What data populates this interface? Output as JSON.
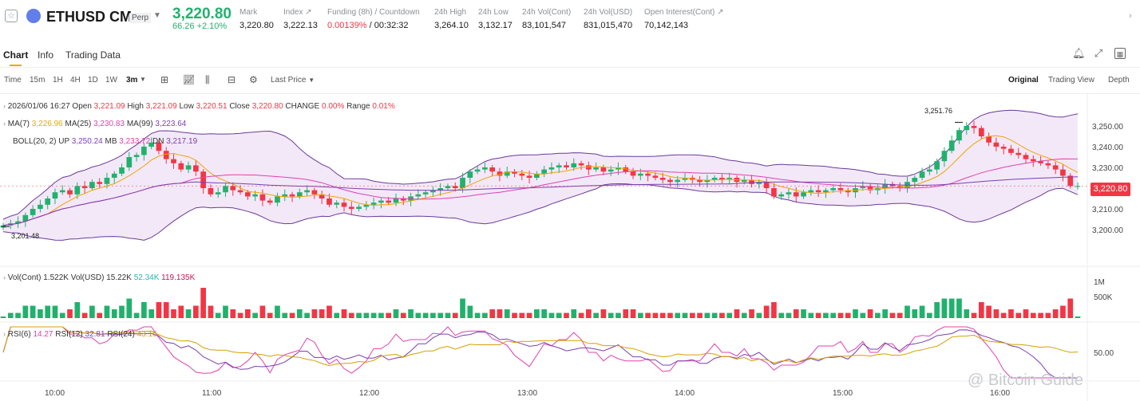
{
  "ticker": {
    "symbol": "ETHUSD CM",
    "perp_badge": "Perp",
    "last_price": "3,220.80",
    "change": "66.26 +2.10%",
    "stats": [
      {
        "label": "Mark",
        "value": "3,220.80",
        "color": "#1a1a1a"
      },
      {
        "label": "Index ↗",
        "value": "3,222.13",
        "color": "#1a1a1a"
      },
      {
        "label": "Funding (8h) / Countdown",
        "value": "0.00139%",
        "value2": " / 00:32:32",
        "color": "#f23645"
      },
      {
        "label": "24h High",
        "value": "3,264.10",
        "color": "#1a1a1a"
      },
      {
        "label": "24h Low",
        "value": "3,132.17",
        "color": "#1a1a1a"
      },
      {
        "label": "24h Vol(Cont)",
        "value": "83,101,547",
        "color": "#1a1a1a"
      },
      {
        "label": "24h Vol(USD)",
        "value": "831,015,470",
        "color": "#1a1a1a"
      },
      {
        "label": "Open Interest(Cont) ↗",
        "value": "70,142,143",
        "color": "#1a1a1a"
      }
    ]
  },
  "tabs": [
    "Chart",
    "Info",
    "Trading Data"
  ],
  "toolbar": {
    "intervals": [
      "Time",
      "15m",
      "1H",
      "4H",
      "1D",
      "1W",
      "3m"
    ],
    "active_interval": "3m",
    "price_type": "Last Price",
    "views": [
      "Original",
      "Trading View",
      "Depth"
    ],
    "active_view": "Original"
  },
  "legend": {
    "ohlc": {
      "date": "2026/01/06 16:27",
      "open_label": "Open",
      "open": "3,221.09",
      "high_label": "High",
      "high": "3,221.09",
      "low_label": "Low",
      "low": "3,220.51",
      "close_label": "Close",
      "close": "3,220.80",
      "change_label": "CHANGE",
      "change": "0.00%",
      "range_label": "Range",
      "range": "0.01%"
    },
    "ma": {
      "label": "MA(7)",
      "ma7": "3,226.96",
      "ma25_label": "MA(25)",
      "ma25": "3,230.83",
      "ma99_label": "MA(99)",
      "ma99": "3,223.64"
    },
    "boll": {
      "label": "BOLL(20, 2)",
      "up_label": "UP",
      "up": "3,250.24",
      "mb_label": "MB",
      "mb": "3,233.72",
      "dn_label": "DN",
      "dn": "3,217.19"
    },
    "vol": {
      "label": "Vol(Cont)",
      "cont": "1.522K",
      "usd_label": "Vol(USD)",
      "usd": "15.22K",
      "ma1": "52.34K",
      "ma2": "119.135K"
    },
    "rsi": {
      "r6_label": "RSI(6)",
      "r6": "14.27",
      "r12_label": "RSI(12)",
      "r12": "32.81",
      "r24_label": "RSI(24)",
      "r24": "43.16"
    }
  },
  "annotations": {
    "high_mark": "3,251.76",
    "low_mark": "3,201.48",
    "current_price_tag": "3,220.80"
  },
  "watermark": "@ Bitcoin Guide",
  "colors": {
    "up": "#20b26c",
    "down": "#f23645",
    "ma7": "#f0a500",
    "ma25": "#e040b0",
    "ma99": "#7b3fb0",
    "boll": "#6a3a9a",
    "boll_fill": "#f3e8f8"
  },
  "chart_data": {
    "type": "candlestick",
    "y_axis_ticks": [
      "3,250.00",
      "3,240.00",
      "3,230.00",
      "3,220.00",
      "3,210.00",
      "3,200.00"
    ],
    "ylim": [
      3195,
      3255
    ],
    "x_axis_ticks": [
      "10:00",
      "11:00",
      "12:00",
      "13:00",
      "14:00",
      "15:00",
      "16:00"
    ],
    "volume_axis_ticks": [
      "1M",
      "500K"
    ],
    "rsi_axis_ticks": [
      "50.00"
    ],
    "closes": [
      3202,
      3203,
      3204,
      3207,
      3210,
      3212,
      3215,
      3218,
      3219,
      3217,
      3221,
      3220,
      3223,
      3222,
      3225,
      3227,
      3230,
      3235,
      3236,
      3240,
      3242,
      3238,
      3234,
      3232,
      3229,
      3231,
      3228,
      3220,
      3217,
      3218,
      3221,
      3219,
      3218,
      3216,
      3217,
      3214,
      3213,
      3216,
      3217,
      3216,
      3218,
      3219,
      3217,
      3215,
      3212,
      3213,
      3211,
      3210,
      3211,
      3212,
      3213,
      3214,
      3213,
      3215,
      3214,
      3216,
      3217,
      3218,
      3219,
      3220,
      3221,
      3220,
      3225,
      3228,
      3229,
      3230,
      3228,
      3226,
      3228,
      3227,
      3226,
      3225,
      3227,
      3229,
      3230,
      3231,
      3230,
      3232,
      3231,
      3229,
      3230,
      3228,
      3229,
      3230,
      3228,
      3226,
      3227,
      3226,
      3225,
      3224,
      3223,
      3224,
      3225,
      3224,
      3223,
      3224,
      3225,
      3224,
      3225,
      3223,
      3224,
      3222,
      3223,
      3220,
      3216,
      3217,
      3218,
      3216,
      3218,
      3219,
      3218,
      3219,
      3220,
      3219,
      3218,
      3220,
      3221,
      3219,
      3220,
      3222,
      3221,
      3220,
      3223,
      3225,
      3228,
      3229,
      3233,
      3238,
      3243,
      3248,
      3250,
      3249,
      3245,
      3242,
      3240,
      3239,
      3237,
      3236,
      3234,
      3233,
      3232,
      3231,
      3229,
      3226,
      3221,
      3221
    ],
    "high_marker": 3251.76,
    "low_marker": 3201.48
  }
}
